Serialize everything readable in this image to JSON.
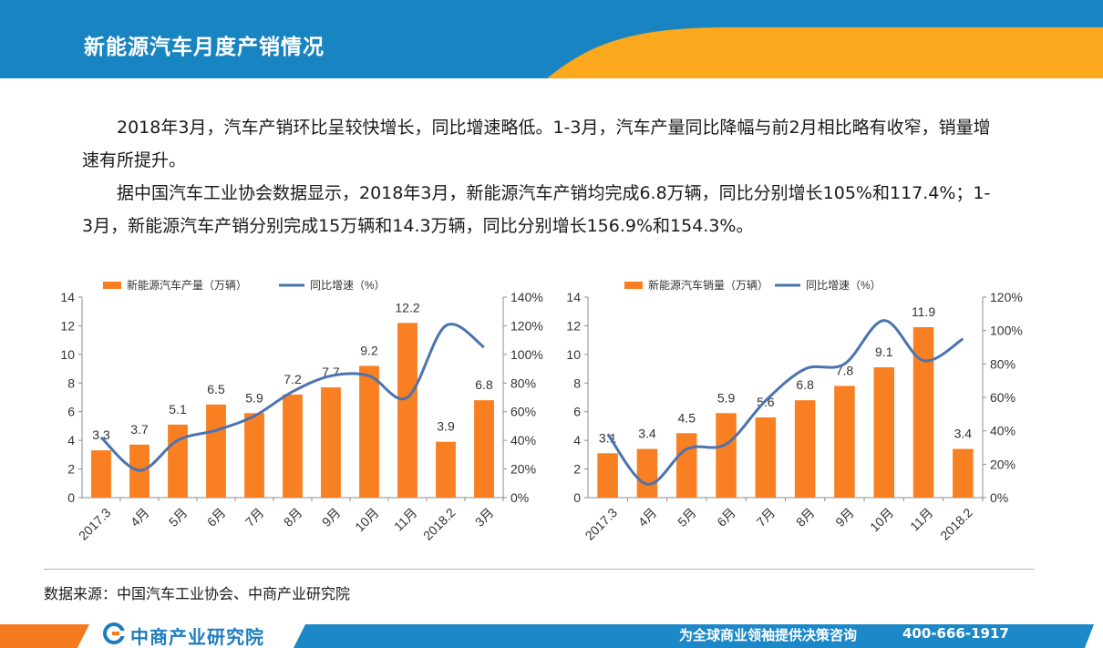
{
  "header": {
    "title": "新能源汽车月度产销情况"
  },
  "paragraphs": [
    "2018年3月，汽车产销环比呈较快增长，同比增速略低。1-3月，汽车产量同比降幅与前2月相比略有收窄，销量增速有所提升。",
    "据中国汽车工业协会数据显示，2018年3月，新能源汽车产销均完成6.8万辆，同比分别增长105%和117.4%；1-3月，新能源汽车产销分别完成15万辆和14.3万辆，同比分别增长156.9%和154.3%。"
  ],
  "colors": {
    "bar": "#f97f23",
    "line": "#4a73b0",
    "header_blue": "#1885c2",
    "header_orange": "#fba81c",
    "footer_blue": "#1c88c7",
    "footer_orange": "#f47b20"
  },
  "chart_data": [
    {
      "type": "bar",
      "categories": [
        "2017.3",
        "4月",
        "5月",
        "6月",
        "7月",
        "8月",
        "9月",
        "10月",
        "11月",
        "2018.2",
        "3月"
      ],
      "series": [
        {
          "name": "新能源汽车产量（万辆）",
          "type": "bar",
          "axis": "left",
          "values": [
            3.3,
            3.7,
            5.1,
            6.5,
            5.9,
            7.2,
            7.7,
            9.2,
            12.2,
            3.9,
            6.8
          ]
        },
        {
          "name": "同比增速（%）",
          "type": "line",
          "axis": "right",
          "values": [
            42,
            19,
            40,
            47,
            57,
            74,
            85,
            85,
            70,
            120,
            105
          ]
        }
      ],
      "y_left": {
        "min": 0,
        "max": 14,
        "ticks": [
          "0",
          "2",
          "4",
          "6",
          "8",
          "10",
          "12",
          "14"
        ]
      },
      "y_right": {
        "min": 0,
        "max": 140,
        "ticks": [
          "0%",
          "20%",
          "40%",
          "60%",
          "80%",
          "100%",
          "120%",
          "140%"
        ]
      },
      "legend": "top"
    },
    {
      "type": "bar",
      "categories": [
        "2017.3",
        "4月",
        "5月",
        "6月",
        "7月",
        "8月",
        "9月",
        "10月",
        "11月",
        "2018.2"
      ],
      "series": [
        {
          "name": "新能源汽车销量（万辆）",
          "type": "bar",
          "axis": "left",
          "values": [
            3.1,
            3.4,
            4.5,
            5.9,
            5.6,
            6.8,
            7.8,
            9.1,
            11.9,
            3.4
          ]
        },
        {
          "name": "同比增速（%）",
          "type": "line",
          "axis": "right",
          "values": [
            38,
            8,
            29,
            32,
            58,
            77,
            80,
            106,
            82,
            95
          ]
        }
      ],
      "y_left": {
        "min": 0,
        "max": 14,
        "ticks": [
          "0",
          "2",
          "4",
          "6",
          "8",
          "10",
          "12",
          "14"
        ]
      },
      "y_right": {
        "min": 0,
        "max": 120,
        "ticks": [
          "0%",
          "20%",
          "40%",
          "60%",
          "80%",
          "100%",
          "120%"
        ]
      },
      "legend": "top"
    }
  ],
  "source": "数据来源：中国汽车工业协会、中商产业研究院",
  "footer": {
    "logo": "中商产业研究院",
    "slogan": "为全球商业领袖提供决策咨询",
    "phone": "400-666-1917"
  }
}
